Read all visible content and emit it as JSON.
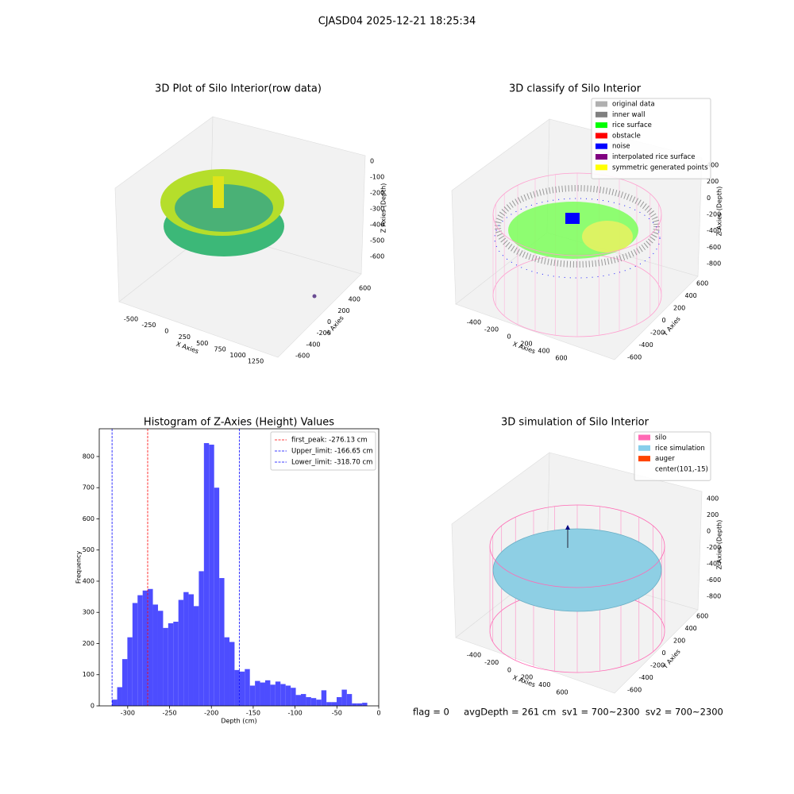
{
  "suptitle": "CJASD04 2025-12-21 18:25:34",
  "footer": "flag = 0     avgDepth = 261 cm  sv1 = 700~2300  sv2 = 700~2300",
  "chart_data": [
    {
      "type": "scatter3d",
      "title": "3D Plot of Silo Interior(row data)",
      "xlabel": "X Axies",
      "ylabel": "Y Axies",
      "zlabel": "Z Axies (Depth)",
      "xticks": [
        -500,
        -250,
        0,
        250,
        500,
        750,
        1000,
        1250
      ],
      "yticks": [
        -600,
        -400,
        -200,
        0,
        200,
        400,
        600
      ],
      "zticks": [
        0,
        -100,
        -200,
        -300,
        -400,
        -500,
        -600
      ]
    },
    {
      "type": "classify3d",
      "title": "3D classify of Silo Interior",
      "xlabel": "X Axies",
      "ylabel": "Y Axies",
      "zlabel": "Z Axies (Depth)",
      "xticks": [
        -400,
        -200,
        0,
        200,
        400,
        600
      ],
      "yticks": [
        -600,
        -400,
        -200,
        0,
        200,
        400,
        600
      ],
      "zticks": [
        400,
        200,
        0,
        -200,
        -400,
        -600,
        -800
      ],
      "legend": [
        {
          "name": "original data",
          "color": "#b0b0b0"
        },
        {
          "name": "inner wall",
          "color": "#808080"
        },
        {
          "name": "rice surface",
          "color": "#00ff00"
        },
        {
          "name": "obstacle",
          "color": "#ff0000"
        },
        {
          "name": "noise",
          "color": "#0000ff"
        },
        {
          "name": "interpolated rice surface",
          "color": "#800080"
        },
        {
          "name": "symmetric generated points",
          "color": "#ffff00"
        }
      ],
      "legend_loc": "upper right"
    },
    {
      "type": "histogram",
      "title": "Histogram of Z-Axies (Height) Values",
      "xlabel": "Depth (cm)",
      "ylabel": "Frequency",
      "color": "#4d4dff",
      "bins": [
        -318.7,
        -312.6,
        -306.5,
        -300.4,
        -294.3,
        -288.2,
        -282.1,
        -276.0,
        -269.9,
        -263.8,
        -257.7,
        -251.6,
        -245.5,
        -239.4,
        -233.3,
        -227.2,
        -221.1,
        -215.0,
        -208.9,
        -202.8,
        -196.7,
        -190.6,
        -184.5,
        -178.4,
        -172.3,
        -166.2,
        -160.1,
        -154.0,
        -147.9,
        -141.8,
        -135.7,
        -129.6,
        -123.5,
        -117.4,
        -111.3,
        -105.2,
        -99.1,
        -93.0,
        -86.9,
        -80.8,
        -74.7,
        -68.6,
        -62.5,
        -56.4,
        -50.3,
        -44.2,
        -38.1,
        -32.0,
        -25.9,
        -19.8,
        -13.7
      ],
      "values": [
        20,
        60,
        150,
        220,
        330,
        355,
        370,
        375,
        325,
        305,
        250,
        265,
        270,
        340,
        365,
        358,
        320,
        432,
        843,
        838,
        700,
        410,
        220,
        205,
        115,
        110,
        118,
        65,
        80,
        75,
        82,
        68,
        78,
        70,
        65,
        58,
        35,
        38,
        28,
        25,
        20,
        50,
        12,
        12,
        28,
        52,
        38,
        8,
        8,
        10
      ],
      "lines": [
        {
          "name": "first_peak: -276.13 cm",
          "value": -276.13,
          "color": "#ff0000"
        },
        {
          "name": "Upper_limit: -166.65 cm",
          "value": -166.65,
          "color": "#0000ff"
        },
        {
          "name": "Lower_limit: -318.70 cm",
          "value": -318.7,
          "color": "#0000ff"
        }
      ],
      "legend_loc": "upper right",
      "xlim": [
        -334,
        0
      ],
      "ylim": [
        0,
        889
      ],
      "xticks": [
        -300,
        -250,
        -200,
        -150,
        -100,
        -50,
        0
      ],
      "yticks": [
        0,
        100,
        200,
        300,
        400,
        500,
        600,
        700,
        800
      ]
    },
    {
      "type": "surface3d",
      "title": "3D simulation of Silo Interior",
      "xlabel": "X Axies",
      "ylabel": "Y Axies",
      "zlabel": "Z Axies (Depth)",
      "xticks": [
        -400,
        -200,
        0,
        200,
        400,
        600
      ],
      "yticks": [
        -600,
        -400,
        -200,
        0,
        200,
        400,
        600
      ],
      "zticks": [
        400,
        200,
        0,
        -200,
        -400,
        -600,
        -800
      ],
      "legend": [
        {
          "name": "silo",
          "color": "#ff69b4"
        },
        {
          "name": "rice simulation",
          "color": "#87ceeb"
        },
        {
          "name": "auger",
          "color": "#ff4500"
        },
        {
          "name": "center(101,-15)",
          "color": null
        }
      ],
      "legend_loc": "upper right"
    }
  ]
}
